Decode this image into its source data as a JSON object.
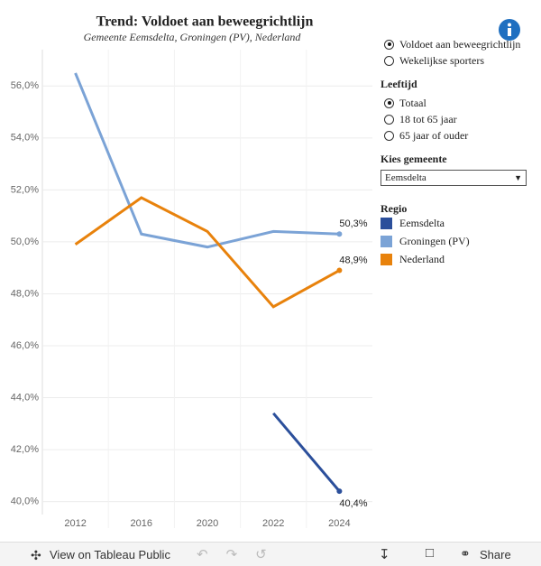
{
  "chart_data": {
    "type": "line",
    "title": "Trend: Voldoet aan beweegrichtlijn",
    "subtitle": "Gemeente Eemsdelta, Groningen (PV), Nederland",
    "categories": [
      "2012",
      "2016",
      "2020",
      "2022",
      "2024"
    ],
    "series": [
      {
        "name": "Eemsdelta",
        "color": "#2b4f9b",
        "values": [
          null,
          null,
          null,
          43.4,
          40.4
        ],
        "value_labels": [
          null,
          null,
          null,
          null,
          "40,4%"
        ]
      },
      {
        "name": "Groningen (PV)",
        "color": "#7ba3d6",
        "values": [
          56.5,
          50.3,
          49.8,
          50.4,
          50.3
        ],
        "value_labels": [
          null,
          null,
          null,
          null,
          "50,3%"
        ]
      },
      {
        "name": "Nederland",
        "color": "#e8820c",
        "values": [
          49.9,
          51.7,
          50.4,
          47.5,
          48.9
        ],
        "value_labels": [
          null,
          null,
          null,
          null,
          "48,9%"
        ]
      }
    ],
    "ylim": [
      39.5,
      57.4
    ],
    "yticks": [
      {
        "value": 40,
        "label": "40,0%"
      },
      {
        "value": 42,
        "label": "42,0%"
      },
      {
        "value": 44,
        "label": "44,0%"
      },
      {
        "value": 46,
        "label": "46,0%"
      },
      {
        "value": 48,
        "label": "48,0%"
      },
      {
        "value": 50,
        "label": "50,0%"
      },
      {
        "value": 52,
        "label": "52,0%"
      },
      {
        "value": 54,
        "label": "54,0%"
      },
      {
        "value": 56,
        "label": "56,0%"
      }
    ],
    "grid": true,
    "legend_title": "Regio"
  },
  "controls": {
    "measure": {
      "options": [
        "Voldoet aan beweegrichtlijn",
        "Wekelijkse sporters"
      ],
      "selected": 0
    },
    "age": {
      "title": "Leeftijd",
      "options": [
        "Totaal",
        "18 tot 65 jaar",
        "65 jaar of ouder"
      ],
      "selected": 0
    },
    "gemeente": {
      "title": "Kies gemeente",
      "value": "Eemsdelta"
    }
  },
  "toolbar": {
    "view": "View on Tableau Public",
    "share": "Share"
  }
}
